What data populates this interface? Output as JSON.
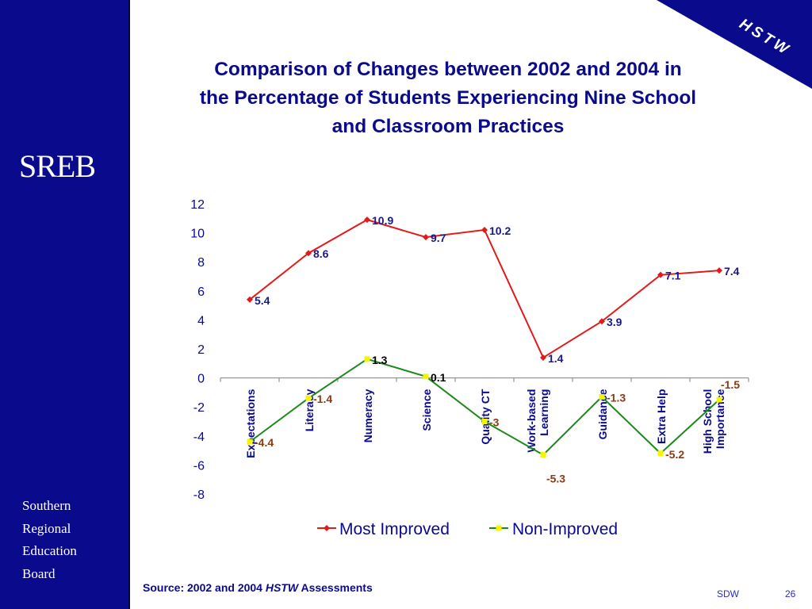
{
  "title_lines": [
    "Comparison of Changes between 2002 and 2004 in",
    "the Percentage of Students Experiencing Nine School",
    "and Classroom Practices"
  ],
  "sidebar": {
    "logo": "SREB",
    "org_lines": [
      "Southern",
      "Regional",
      "Education",
      "Board"
    ]
  },
  "corner_label": "HSTW",
  "source": {
    "prefix": "Source: 2002 and 2004 ",
    "italic": "HSTW",
    "suffix": " Assessments"
  },
  "footer": {
    "left": "SDW",
    "page": "26"
  },
  "colors": {
    "background": "#ffffff",
    "sidebar": "#0a0a8c",
    "title": "#0a0a8c",
    "most_improved_line": "#e31a1a",
    "most_improved_label": "#1a1a80",
    "non_improved_line": "#1a8a1a",
    "non_improved_marker": "#f5f500",
    "non_improved_negative_label": "#8b3a12"
  },
  "chart_data": {
    "type": "line",
    "categories": [
      "Expectations",
      "Literacy",
      "Numeracy",
      "Science",
      "Quality CT",
      "Work-based Learning",
      "Guidance",
      "Extra Help",
      "High School Importance"
    ],
    "category_labels": [
      [
        "Expectations"
      ],
      [
        "Literacy"
      ],
      [
        "Numeracy"
      ],
      [
        "Science"
      ],
      [
        "Quality CT"
      ],
      [
        "Work-based",
        "Learning"
      ],
      [
        "Guidance"
      ],
      [
        "Extra Help"
      ],
      [
        "High School",
        "Importance"
      ]
    ],
    "series": [
      {
        "name": "Most Improved",
        "values": [
          5.4,
          8.6,
          10.9,
          9.7,
          10.2,
          1.4,
          3.9,
          7.1,
          7.4
        ],
        "labels": [
          "5.4",
          "8.6",
          "10.9",
          "9.7",
          "10.2",
          "1.4",
          "3.9",
          "7.1",
          "7.4"
        ]
      },
      {
        "name": "Non-Improved",
        "values": [
          -4.4,
          -1.4,
          1.3,
          0.1,
          -3,
          -5.3,
          -1.3,
          -5.2,
          -1.5
        ],
        "labels": [
          "-4.4",
          "-1.4",
          "1.3",
          "0.1",
          "-3",
          "-5.3",
          "-1.3",
          "-5.2",
          "-1.5"
        ]
      }
    ],
    "y_ticks": [
      "12",
      "10",
      "8",
      "6",
      "4",
      "2",
      "0",
      "-2",
      "-4",
      "-6",
      "-8"
    ],
    "ylim": [
      -8,
      12
    ],
    "grid": false,
    "legend_placement": "bottom"
  }
}
